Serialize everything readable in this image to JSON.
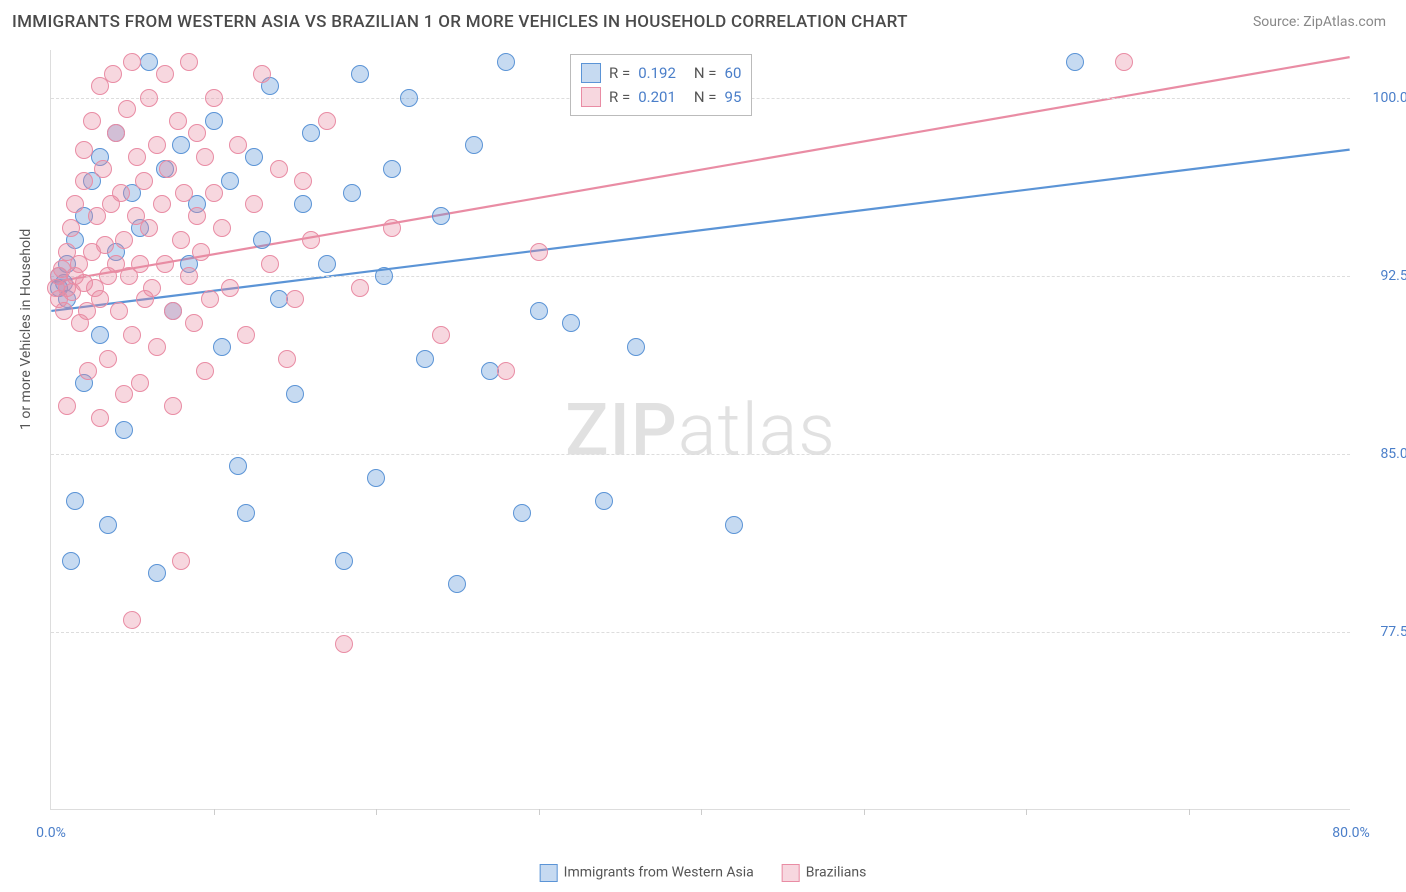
{
  "title": "IMMIGRANTS FROM WESTERN ASIA VS BRAZILIAN 1 OR MORE VEHICLES IN HOUSEHOLD CORRELATION CHART",
  "source": "Source: ZipAtlas.com",
  "watermark_a": "ZIP",
  "watermark_b": "atlas",
  "chart": {
    "type": "scatter",
    "background_color": "#ffffff",
    "grid_color": "#dddddd",
    "grid_dash": true,
    "xlim": [
      0,
      80
    ],
    "ylim": [
      70,
      102
    ],
    "x_ticks": [
      0,
      80
    ],
    "x_tick_labels": [
      "0.0%",
      "80.0%"
    ],
    "x_minor_ticks": [
      10,
      20,
      30,
      40,
      50,
      60,
      70
    ],
    "y_ticks": [
      77.5,
      85.0,
      92.5,
      100.0
    ],
    "y_tick_labels": [
      "77.5%",
      "85.0%",
      "92.5%",
      "100.0%"
    ],
    "y_label": "1 or more Vehicles in Household",
    "y_label_fontsize": 14,
    "tick_label_color": "#4a7ec9",
    "tick_label_fontsize": 14,
    "marker_radius": 9,
    "marker_opacity": 0.45,
    "line_width": 2.2,
    "series": [
      {
        "name": "Immigrants from Western Asia",
        "color": "#5b94d6",
        "fill": "rgba(91,148,214,0.35)",
        "stroke": "#5b94d6",
        "R": 0.192,
        "N": 60,
        "trend": {
          "x1": 0,
          "y1": 91.0,
          "x2": 80,
          "y2": 97.8
        },
        "points": [
          [
            0.5,
            92.0
          ],
          [
            0.5,
            92.5
          ],
          [
            0.8,
            92.2
          ],
          [
            1.0,
            91.5
          ],
          [
            1.0,
            93.0
          ],
          [
            1.2,
            80.5
          ],
          [
            1.5,
            83.0
          ],
          [
            1.5,
            94.0
          ],
          [
            2.0,
            95.0
          ],
          [
            2.0,
            88.0
          ],
          [
            2.5,
            96.5
          ],
          [
            3.0,
            90.0
          ],
          [
            3.0,
            97.5
          ],
          [
            3.5,
            82.0
          ],
          [
            4.0,
            93.5
          ],
          [
            4.0,
            98.5
          ],
          [
            4.5,
            86.0
          ],
          [
            5.0,
            96.0
          ],
          [
            5.5,
            94.5
          ],
          [
            6.0,
            101.5
          ],
          [
            6.5,
            80.0
          ],
          [
            7.0,
            97.0
          ],
          [
            7.5,
            91.0
          ],
          [
            8.0,
            98.0
          ],
          [
            8.5,
            93.0
          ],
          [
            9.0,
            95.5
          ],
          [
            10.0,
            99.0
          ],
          [
            10.5,
            89.5
          ],
          [
            11.0,
            96.5
          ],
          [
            11.5,
            84.5
          ],
          [
            12.0,
            82.5
          ],
          [
            12.5,
            97.5
          ],
          [
            13.0,
            94.0
          ],
          [
            13.5,
            100.5
          ],
          [
            14.0,
            91.5
          ],
          [
            15.0,
            87.5
          ],
          [
            15.5,
            95.5
          ],
          [
            16.0,
            98.5
          ],
          [
            17.0,
            93.0
          ],
          [
            18.0,
            80.5
          ],
          [
            18.5,
            96.0
          ],
          [
            19.0,
            101.0
          ],
          [
            20.0,
            84.0
          ],
          [
            20.5,
            92.5
          ],
          [
            21.0,
            97.0
          ],
          [
            22.0,
            100.0
          ],
          [
            23.0,
            89.0
          ],
          [
            24.0,
            95.0
          ],
          [
            25.0,
            79.5
          ],
          [
            26.0,
            98.0
          ],
          [
            27.0,
            88.5
          ],
          [
            28.0,
            101.5
          ],
          [
            29.0,
            82.5
          ],
          [
            30.0,
            91.0
          ],
          [
            32.0,
            90.5
          ],
          [
            34.0,
            83.0
          ],
          [
            36.0,
            89.5
          ],
          [
            40.0,
            101.0
          ],
          [
            42.0,
            82.0
          ],
          [
            63.0,
            101.5
          ]
        ]
      },
      {
        "name": "Brazilians",
        "color": "#e98ca4",
        "fill": "rgba(233,140,164,0.35)",
        "stroke": "#e98ca4",
        "R": 0.201,
        "N": 95,
        "trend": {
          "x1": 0,
          "y1": 92.2,
          "x2": 80,
          "y2": 101.7
        },
        "points": [
          [
            0.3,
            92.0
          ],
          [
            0.5,
            92.5
          ],
          [
            0.5,
            91.5
          ],
          [
            0.7,
            92.8
          ],
          [
            0.8,
            91.0
          ],
          [
            1.0,
            93.5
          ],
          [
            1.0,
            92.0
          ],
          [
            1.0,
            87.0
          ],
          [
            1.2,
            94.5
          ],
          [
            1.3,
            91.8
          ],
          [
            1.5,
            92.5
          ],
          [
            1.5,
            95.5
          ],
          [
            1.7,
            93.0
          ],
          [
            1.8,
            90.5
          ],
          [
            2.0,
            96.5
          ],
          [
            2.0,
            92.2
          ],
          [
            2.0,
            97.8
          ],
          [
            2.2,
            91.0
          ],
          [
            2.3,
            88.5
          ],
          [
            2.5,
            93.5
          ],
          [
            2.5,
            99.0
          ],
          [
            2.7,
            92.0
          ],
          [
            2.8,
            95.0
          ],
          [
            3.0,
            100.5
          ],
          [
            3.0,
            91.5
          ],
          [
            3.0,
            86.5
          ],
          [
            3.2,
            97.0
          ],
          [
            3.3,
            93.8
          ],
          [
            3.5,
            92.5
          ],
          [
            3.5,
            89.0
          ],
          [
            3.7,
            95.5
          ],
          [
            3.8,
            101.0
          ],
          [
            4.0,
            93.0
          ],
          [
            4.0,
            98.5
          ],
          [
            4.2,
            91.0
          ],
          [
            4.3,
            96.0
          ],
          [
            4.5,
            87.5
          ],
          [
            4.5,
            94.0
          ],
          [
            4.7,
            99.5
          ],
          [
            4.8,
            92.5
          ],
          [
            5.0,
            101.5
          ],
          [
            5.0,
            78.0
          ],
          [
            5.0,
            90.0
          ],
          [
            5.2,
            95.0
          ],
          [
            5.3,
            97.5
          ],
          [
            5.5,
            93.0
          ],
          [
            5.5,
            88.0
          ],
          [
            5.7,
            96.5
          ],
          [
            5.8,
            91.5
          ],
          [
            6.0,
            100.0
          ],
          [
            6.0,
            94.5
          ],
          [
            6.2,
            92.0
          ],
          [
            6.5,
            98.0
          ],
          [
            6.5,
            89.5
          ],
          [
            6.8,
            95.5
          ],
          [
            7.0,
            101.0
          ],
          [
            7.0,
            93.0
          ],
          [
            7.2,
            97.0
          ],
          [
            7.5,
            91.0
          ],
          [
            7.5,
            87.0
          ],
          [
            7.8,
            99.0
          ],
          [
            8.0,
            94.0
          ],
          [
            8.0,
            80.5
          ],
          [
            8.2,
            96.0
          ],
          [
            8.5,
            92.5
          ],
          [
            8.5,
            101.5
          ],
          [
            8.8,
            90.5
          ],
          [
            9.0,
            95.0
          ],
          [
            9.0,
            98.5
          ],
          [
            9.2,
            93.5
          ],
          [
            9.5,
            88.5
          ],
          [
            9.5,
            97.5
          ],
          [
            9.8,
            91.5
          ],
          [
            10.0,
            100.0
          ],
          [
            10.0,
            96.0
          ],
          [
            10.5,
            94.5
          ],
          [
            11.0,
            92.0
          ],
          [
            11.5,
            98.0
          ],
          [
            12.0,
            90.0
          ],
          [
            12.5,
            95.5
          ],
          [
            13.0,
            101.0
          ],
          [
            13.5,
            93.0
          ],
          [
            14.0,
            97.0
          ],
          [
            14.5,
            89.0
          ],
          [
            15.0,
            91.5
          ],
          [
            15.5,
            96.5
          ],
          [
            16.0,
            94.0
          ],
          [
            17.0,
            99.0
          ],
          [
            18.0,
            77.0
          ],
          [
            19.0,
            92.0
          ],
          [
            21.0,
            94.5
          ],
          [
            24.0,
            90.0
          ],
          [
            28.0,
            88.5
          ],
          [
            30.0,
            93.5
          ],
          [
            66.0,
            101.5
          ]
        ]
      }
    ]
  },
  "legend_top": {
    "rows": [
      {
        "swatch_fill": "rgba(91,148,214,0.35)",
        "swatch_stroke": "#5b94d6",
        "r_label": "R =",
        "r_val": "0.192",
        "n_label": "N =",
        "n_val": "60"
      },
      {
        "swatch_fill": "rgba(233,140,164,0.35)",
        "swatch_stroke": "#e98ca4",
        "r_label": "R =",
        "r_val": "0.201",
        "n_label": "N =",
        "n_val": "95"
      }
    ]
  },
  "legend_bottom": {
    "items": [
      {
        "swatch_fill": "rgba(91,148,214,0.35)",
        "swatch_stroke": "#5b94d6",
        "label": "Immigrants from Western Asia"
      },
      {
        "swatch_fill": "rgba(233,140,164,0.35)",
        "swatch_stroke": "#e98ca4",
        "label": "Brazilians"
      }
    ]
  }
}
